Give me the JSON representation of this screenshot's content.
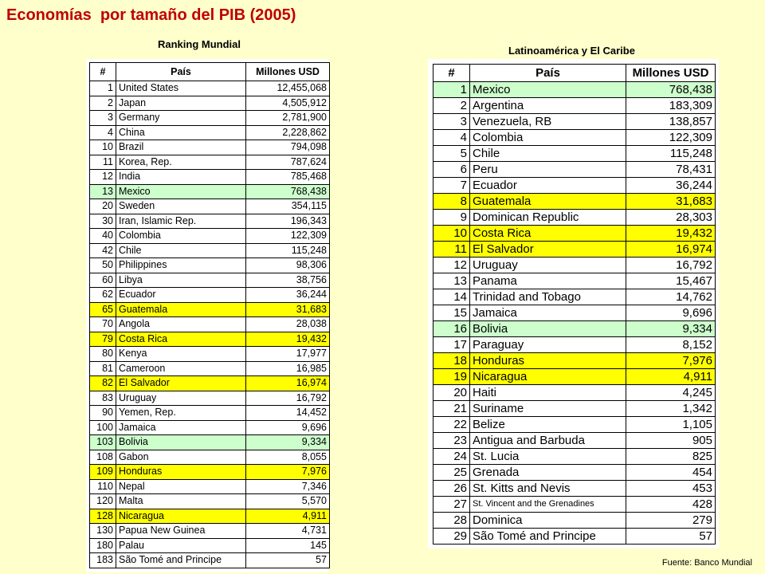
{
  "title": "Economías  por tamaño del PIB (2005)",
  "world": {
    "subtitle": "Ranking Mundial",
    "headers": [
      "#",
      "País",
      "Millones USD"
    ],
    "rows": [
      {
        "rank": "1",
        "country": "United States",
        "value": "12,455,068",
        "hl": ""
      },
      {
        "rank": "2",
        "country": "Japan",
        "value": "4,505,912",
        "hl": ""
      },
      {
        "rank": "3",
        "country": "Germany",
        "value": "2,781,900",
        "hl": ""
      },
      {
        "rank": "4",
        "country": "China",
        "value": "2,228,862",
        "hl": ""
      },
      {
        "rank": "10",
        "country": "Brazil",
        "value": "794,098",
        "hl": ""
      },
      {
        "rank": "11",
        "country": "Korea, Rep.",
        "value": "787,624",
        "hl": ""
      },
      {
        "rank": "12",
        "country": "India",
        "value": "785,468",
        "hl": ""
      },
      {
        "rank": "13",
        "country": "Mexico",
        "value": "768,438",
        "hl": "green"
      },
      {
        "rank": "20",
        "country": "Sweden",
        "value": "354,115",
        "hl": ""
      },
      {
        "rank": "30",
        "country": "Iran, Islamic Rep.",
        "value": "196,343",
        "hl": ""
      },
      {
        "rank": "40",
        "country": "Colombia",
        "value": "122,309",
        "hl": ""
      },
      {
        "rank": "42",
        "country": "Chile",
        "value": "115,248",
        "hl": ""
      },
      {
        "rank": "50",
        "country": "Philippines",
        "value": "98,306",
        "hl": ""
      },
      {
        "rank": "60",
        "country": "Libya",
        "value": "38,756",
        "hl": ""
      },
      {
        "rank": "62",
        "country": "Ecuador",
        "value": "36,244",
        "hl": ""
      },
      {
        "rank": "65",
        "country": "Guatemala",
        "value": "31,683",
        "hl": "yellow"
      },
      {
        "rank": "70",
        "country": "Angola",
        "value": "28,038",
        "hl": ""
      },
      {
        "rank": "79",
        "country": "Costa Rica",
        "value": "19,432",
        "hl": "yellow"
      },
      {
        "rank": "80",
        "country": "Kenya",
        "value": "17,977",
        "hl": ""
      },
      {
        "rank": "81",
        "country": "Cameroon",
        "value": "16,985",
        "hl": ""
      },
      {
        "rank": "82",
        "country": "El Salvador",
        "value": "16,974",
        "hl": "yellow"
      },
      {
        "rank": "83",
        "country": "Uruguay",
        "value": "16,792",
        "hl": ""
      },
      {
        "rank": "90",
        "country": "Yemen, Rep.",
        "value": "14,452",
        "hl": ""
      },
      {
        "rank": "100",
        "country": "Jamaica",
        "value": "9,696",
        "hl": ""
      },
      {
        "rank": "103",
        "country": "Bolivia",
        "value": "9,334",
        "hl": "green"
      },
      {
        "rank": "108",
        "country": "Gabon",
        "value": "8,055",
        "hl": ""
      },
      {
        "rank": "109",
        "country": "Honduras",
        "value": "7,976",
        "hl": "yellow"
      },
      {
        "rank": "110",
        "country": "Nepal",
        "value": "7,346",
        "hl": ""
      },
      {
        "rank": "120",
        "country": "Malta",
        "value": "5,570",
        "hl": ""
      },
      {
        "rank": "128",
        "country": "Nicaragua",
        "value": "4,911",
        "hl": "yellow"
      },
      {
        "rank": "130",
        "country": "Papua New Guinea",
        "value": "4,731",
        "hl": ""
      },
      {
        "rank": "180",
        "country": "Palau",
        "value": "145",
        "hl": ""
      },
      {
        "rank": "183",
        "country": "São Tomé and Principe",
        "value": "57",
        "hl": ""
      }
    ]
  },
  "latam": {
    "subtitle": "Latinoamérica y El Caribe",
    "headers": [
      "#",
      "País",
      "Millones USD"
    ],
    "rows": [
      {
        "rank": "1",
        "country": "Mexico",
        "value": "768,438",
        "hl": "green"
      },
      {
        "rank": "2",
        "country": "Argentina",
        "value": "183,309",
        "hl": ""
      },
      {
        "rank": "3",
        "country": "Venezuela, RB",
        "value": "138,857",
        "hl": ""
      },
      {
        "rank": "4",
        "country": "Colombia",
        "value": "122,309",
        "hl": ""
      },
      {
        "rank": "5",
        "country": "Chile",
        "value": "115,248",
        "hl": ""
      },
      {
        "rank": "6",
        "country": "Peru",
        "value": "78,431",
        "hl": ""
      },
      {
        "rank": "7",
        "country": "Ecuador",
        "value": "36,244",
        "hl": ""
      },
      {
        "rank": "8",
        "country": "Guatemala",
        "value": "31,683",
        "hl": "yellow"
      },
      {
        "rank": "9",
        "country": "Dominican Republic",
        "value": "28,303",
        "hl": ""
      },
      {
        "rank": "10",
        "country": "Costa Rica",
        "value": "19,432",
        "hl": "yellow"
      },
      {
        "rank": "11",
        "country": "El Salvador",
        "value": "16,974",
        "hl": "yellow"
      },
      {
        "rank": "12",
        "country": "Uruguay",
        "value": "16,792",
        "hl": ""
      },
      {
        "rank": "13",
        "country": "Panama",
        "value": "15,467",
        "hl": ""
      },
      {
        "rank": "14",
        "country": "Trinidad and Tobago",
        "value": "14,762",
        "hl": ""
      },
      {
        "rank": "15",
        "country": "Jamaica",
        "value": "9,696",
        "hl": ""
      },
      {
        "rank": "16",
        "country": "Bolivia",
        "value": "9,334",
        "hl": "green"
      },
      {
        "rank": "17",
        "country": "Paraguay",
        "value": "8,152",
        "hl": ""
      },
      {
        "rank": "18",
        "country": "Honduras",
        "value": "7,976",
        "hl": "yellow"
      },
      {
        "rank": "19",
        "country": "Nicaragua",
        "value": "4,911",
        "hl": "yellow"
      },
      {
        "rank": "20",
        "country": "Haiti",
        "value": "4,245",
        "hl": ""
      },
      {
        "rank": "21",
        "country": "Suriname",
        "value": "1,342",
        "hl": ""
      },
      {
        "rank": "22",
        "country": "Belize",
        "value": "1,105",
        "hl": ""
      },
      {
        "rank": "23",
        "country": "Antigua and Barbuda",
        "value": "905",
        "hl": ""
      },
      {
        "rank": "24",
        "country": "St. Lucia",
        "value": "825",
        "hl": ""
      },
      {
        "rank": "25",
        "country": "Grenada",
        "value": "454",
        "hl": ""
      },
      {
        "rank": "26",
        "country": "St. Kitts and Nevis",
        "value": "453",
        "hl": ""
      },
      {
        "rank": "27",
        "country": "St. Vincent and the Grenadines",
        "value": "428",
        "hl": "",
        "small": true
      },
      {
        "rank": "28",
        "country": "Dominica",
        "value": "279",
        "hl": ""
      },
      {
        "rank": "29",
        "country": "São Tomé and Principe",
        "value": "57",
        "hl": ""
      }
    ]
  },
  "source": "Fuente: Banco Mundial",
  "colors": {
    "background": "#ffffcc",
    "title": "#c00000",
    "highlight_yellow": "#ffff00",
    "highlight_green": "#ccffcc"
  }
}
